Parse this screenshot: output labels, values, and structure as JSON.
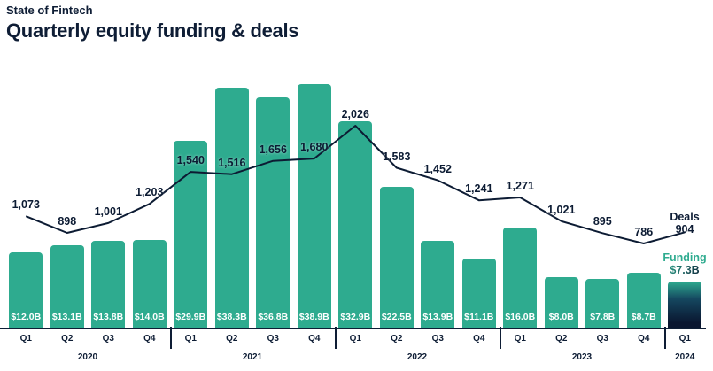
{
  "header": {
    "eyebrow": "State of Fintech",
    "title": "Quarterly equity funding & deals"
  },
  "legend": {
    "deals_label": "Deals",
    "deals_value": "904",
    "funding_label": "Funding",
    "funding_value": "$7.3B"
  },
  "chart_data": {
    "type": "bar+line",
    "title": "Quarterly equity funding & deals",
    "x": [
      "Q1 2020",
      "Q2 2020",
      "Q3 2020",
      "Q4 2020",
      "Q1 2021",
      "Q2 2021",
      "Q3 2021",
      "Q4 2021",
      "Q1 2022",
      "Q2 2022",
      "Q3 2022",
      "Q4 2022",
      "Q1 2023",
      "Q2 2023",
      "Q3 2023",
      "Q4 2023",
      "Q1 2024"
    ],
    "quarters": [
      "Q1",
      "Q2",
      "Q3",
      "Q4",
      "Q1",
      "Q2",
      "Q3",
      "Q4",
      "Q1",
      "Q2",
      "Q3",
      "Q4",
      "Q1",
      "Q2",
      "Q3",
      "Q4",
      "Q1"
    ],
    "years": [
      {
        "label": "2020",
        "span": 4
      },
      {
        "label": "2021",
        "span": 4
      },
      {
        "label": "2022",
        "span": 4
      },
      {
        "label": "2023",
        "span": 4
      },
      {
        "label": "2024",
        "span": 1
      }
    ],
    "series": [
      {
        "name": "Funding ($B)",
        "type": "bar",
        "values": [
          12.0,
          13.1,
          13.8,
          14.0,
          29.9,
          38.3,
          36.8,
          38.9,
          32.9,
          22.5,
          13.9,
          11.1,
          16.0,
          8.0,
          7.8,
          8.7,
          7.3
        ],
        "labels": [
          "$12.0B",
          "$13.1B",
          "$13.8B",
          "$14.0B",
          "$29.9B",
          "$38.3B",
          "$36.8B",
          "$38.9B",
          "$32.9B",
          "$22.5B",
          "$13.9B",
          "$11.1B",
          "$16.0B",
          "$8.0B",
          "$7.8B",
          "$8.7B",
          ""
        ]
      },
      {
        "name": "Deals",
        "type": "line",
        "values": [
          1073,
          898,
          1001,
          1203,
          1540,
          1516,
          1656,
          1680,
          2026,
          1583,
          1452,
          1241,
          1271,
          1021,
          895,
          786,
          904
        ],
        "labels": [
          "1,073",
          "898",
          "1,001",
          "1,203",
          "1,540",
          "1,516",
          "1,656",
          "1,680",
          "2,026",
          "1,583",
          "1,452",
          "1,241",
          "1,271",
          "1,021",
          "895",
          "786",
          ""
        ]
      }
    ],
    "ylim_funding": [
      0,
      40
    ],
    "ylim_deals": [
      700,
      2100
    ],
    "grid": false,
    "legend_position": "right",
    "colors": {
      "bar": "#2eab8f",
      "bar_final_gradient": [
        "#2eab8f",
        "#0a1630"
      ],
      "line": "#0c1b33",
      "deal_label": "#0c1b33",
      "bar_label": "#ffffff",
      "axis": "#0e1d35"
    }
  }
}
